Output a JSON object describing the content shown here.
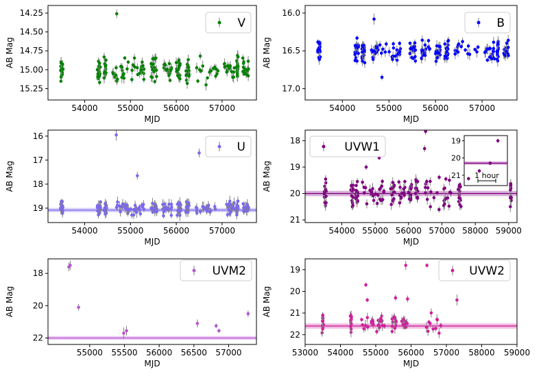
{
  "figure": {
    "description_panels": 6
  },
  "chart_data": [
    {
      "id": "V",
      "type": "scatter",
      "legend": "V",
      "color": "#008000",
      "xlabel": "MJD",
      "ylabel": "AB Mag",
      "xlim": [
        53200,
        57750
      ],
      "ylim": [
        15.4,
        14.15
      ],
      "inverted_y": true,
      "xticks": [
        54000,
        55000,
        56000,
        57000
      ],
      "xticklabels": [
        "54000",
        "55000",
        "56000",
        "57000"
      ],
      "yticks": [
        14.25,
        14.5,
        14.75,
        15.0,
        15.25
      ],
      "yticklabels": [
        "14.25",
        "14.50",
        "14.75",
        "15.00",
        "15.25"
      ],
      "segments": [
        [
          53470,
          53530
        ],
        [
          54270,
          54350
        ],
        [
          54420,
          54480
        ],
        [
          54600,
          54960
        ],
        [
          55000,
          55300
        ],
        [
          55450,
          55580
        ],
        [
          55700,
          55900
        ],
        [
          56000,
          56100
        ],
        [
          56200,
          56280
        ],
        [
          56400,
          56920
        ],
        [
          57050,
          57280
        ],
        [
          57320,
          57350
        ],
        [
          57450,
          57580
        ]
      ],
      "y_range": [
        14.8,
        15.25
      ],
      "y_center": 15.0,
      "n_points": 220,
      "outliers": [
        [
          54700,
          14.26
        ],
        [
          56650,
          15.2
        ]
      ]
    },
    {
      "id": "B",
      "type": "scatter",
      "legend": "B",
      "color": "#0000ff",
      "xlabel": "MJD",
      "ylabel": "AB Mag",
      "xlim": [
        53200,
        57750
      ],
      "ylim": [
        17.15,
        15.9
      ],
      "inverted_y": true,
      "xticks": [
        54000,
        55000,
        56000,
        57000
      ],
      "xticklabels": [
        "54000",
        "55000",
        "56000",
        "57000"
      ],
      "yticks": [
        16.0,
        16.5,
        17.0
      ],
      "yticklabels": [
        "16.0",
        "16.5",
        "17.0"
      ],
      "segments": [
        [
          53470,
          53530
        ],
        [
          54270,
          54350
        ],
        [
          54420,
          54480
        ],
        [
          54600,
          54960
        ],
        [
          55000,
          55300
        ],
        [
          55450,
          55580
        ],
        [
          55700,
          55900
        ],
        [
          56000,
          56100
        ],
        [
          56200,
          56280
        ],
        [
          56400,
          56920
        ],
        [
          57050,
          57280
        ],
        [
          57320,
          57350
        ],
        [
          57450,
          57580
        ]
      ],
      "y_range": [
        16.3,
        16.7
      ],
      "y_center": 16.5,
      "n_points": 220,
      "outliers": [
        [
          54680,
          16.08
        ],
        [
          54850,
          16.85
        ]
      ]
    },
    {
      "id": "U",
      "type": "scatter",
      "legend": "U",
      "color": "#7b68ee",
      "xlabel": "MJD",
      "ylabel": "AB Mag",
      "xlim": [
        53200,
        57750
      ],
      "ylim": [
        19.6,
        15.75
      ],
      "inverted_y": true,
      "xticks": [
        54000,
        55000,
        56000,
        57000
      ],
      "xticklabels": [
        "54000",
        "55000",
        "56000",
        "57000"
      ],
      "yticks": [
        16,
        17,
        18,
        19
      ],
      "yticklabels": [
        "16",
        "17",
        "18",
        "19"
      ],
      "segments": [
        [
          53470,
          53530
        ],
        [
          54270,
          54350
        ],
        [
          54420,
          54480
        ],
        [
          54600,
          54960
        ],
        [
          55000,
          55300
        ],
        [
          55450,
          55580
        ],
        [
          55700,
          55900
        ],
        [
          56000,
          56100
        ],
        [
          56200,
          56280
        ],
        [
          56400,
          56920
        ],
        [
          57050,
          57280
        ],
        [
          57320,
          57350
        ],
        [
          57450,
          57580
        ]
      ],
      "y_range": [
        18.5,
        19.3
      ],
      "y_center": 19.0,
      "n_points": 230,
      "outliers": [
        [
          54690,
          15.95
        ],
        [
          56500,
          16.7
        ],
        [
          55150,
          17.65
        ]
      ],
      "band": {
        "center": 19.08,
        "half": 0.09
      }
    },
    {
      "id": "UVW1",
      "type": "scatter",
      "legend": "UVW1",
      "color": "#800080",
      "xlabel": "MJD",
      "ylabel": "AB Mag",
      "xlim": [
        52900,
        59250
      ],
      "ylim": [
        21.1,
        17.6
      ],
      "inverted_y": true,
      "xticks": [
        54000,
        55000,
        56000,
        57000,
        58000,
        59000
      ],
      "xticklabels": [
        "54000",
        "55000",
        "56000",
        "57000",
        "58000",
        "59000"
      ],
      "yticks": [
        18,
        19,
        20,
        21
      ],
      "yticklabels": [
        "18",
        "19",
        "20",
        "21"
      ],
      "segments": [
        [
          53470,
          53530
        ],
        [
          54270,
          54350
        ],
        [
          54420,
          54480
        ],
        [
          54600,
          54960
        ],
        [
          55000,
          55300
        ],
        [
          55450,
          55580
        ],
        [
          55700,
          55900
        ],
        [
          56000,
          56100
        ],
        [
          56200,
          56280
        ],
        [
          56400,
          56920
        ],
        [
          57050,
          57280
        ],
        [
          57450,
          57580
        ],
        [
          59050,
          59080
        ]
      ],
      "y_range": [
        19.3,
        20.8
      ],
      "y_center": 20.0,
      "n_points": 170,
      "outliers": [
        [
          56510,
          17.65
        ],
        [
          55120,
          18.65
        ],
        [
          54730,
          19.0
        ],
        [
          56480,
          18.3
        ]
      ],
      "band": {
        "center": 20.0,
        "half": 0.1
      },
      "inset": {
        "ylim": [
          21.6,
          18.7
        ],
        "yticks": [
          19,
          20,
          21
        ],
        "yticklabels": [
          "19",
          "20",
          "21"
        ],
        "points": [
          [
            0.1,
            21.2
          ],
          [
            0.35,
            20.75
          ],
          [
            0.6,
            20.3
          ],
          [
            0.78,
            19.0
          ]
        ],
        "band": {
          "center": 20.3,
          "half": 0.1
        },
        "scale_label": "1 hour"
      }
    },
    {
      "id": "UVM2",
      "type": "scatter",
      "legend": "UVM2",
      "color": "#ba55d3",
      "xlabel": "MJD",
      "ylabel": "AB Mag",
      "xlim": [
        54400,
        57400
      ],
      "ylim": [
        22.4,
        17.1
      ],
      "inverted_y": true,
      "xticks": [
        55000,
        55500,
        56000,
        56500,
        57000
      ],
      "xticklabels": [
        "55000",
        "55500",
        "56000",
        "56500",
        "57000"
      ],
      "yticks": [
        18,
        20,
        22
      ],
      "yticklabels": [
        "18",
        "20",
        "22"
      ],
      "points": [
        [
          54700,
          17.6
        ],
        [
          54720,
          17.5
        ],
        [
          54840,
          20.1
        ],
        [
          55490,
          21.7
        ],
        [
          55530,
          21.55
        ],
        [
          56550,
          21.1
        ],
        [
          56820,
          21.25
        ],
        [
          56860,
          21.55
        ],
        [
          57280,
          20.5
        ]
      ],
      "band": {
        "center": 22.0,
        "half": 0.12
      }
    },
    {
      "id": "UVW2",
      "type": "scatter",
      "legend": "UVW2",
      "color": "#d0209c",
      "xlabel": "MJD",
      "ylabel": "AB Mag",
      "xlim": [
        53000,
        59000
      ],
      "ylim": [
        22.45,
        18.5
      ],
      "inverted_y": true,
      "xticks": [
        53000,
        54000,
        55000,
        56000,
        57000,
        58000,
        59000
      ],
      "xticklabels": [
        "53000",
        "54000",
        "55000",
        "56000",
        "57000",
        "58000",
        "59000"
      ],
      "yticks": [
        19,
        20,
        21,
        22
      ],
      "yticklabels": [
        "19",
        "20",
        "21",
        "22"
      ],
      "segments": [
        [
          53480,
          53520
        ],
        [
          54280,
          54320
        ],
        [
          54600,
          54960
        ],
        [
          55000,
          55300
        ],
        [
          55450,
          55580
        ],
        [
          55700,
          55900
        ],
        [
          56400,
          56920
        ]
      ],
      "y_range": [
        20.8,
        22.0
      ],
      "y_center": 21.5,
      "n_points": 75,
      "outliers": [
        [
          53500,
          21.1
        ],
        [
          54720,
          19.7
        ],
        [
          55850,
          18.8
        ],
        [
          56450,
          18.8
        ],
        [
          57300,
          20.4
        ],
        [
          54760,
          20.4
        ],
        [
          55560,
          20.3
        ],
        [
          55900,
          20.35
        ]
      ],
      "band": {
        "center": 21.6,
        "half": 0.12
      }
    }
  ]
}
